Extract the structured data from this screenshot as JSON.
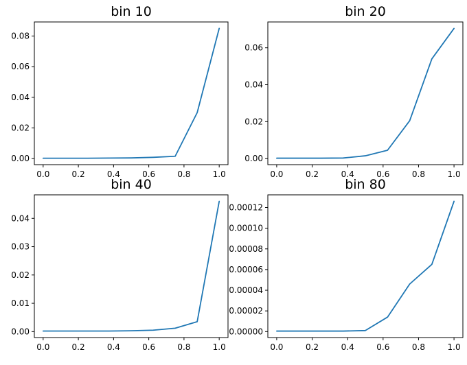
{
  "figure": {
    "background": "#ffffff",
    "line_color": "#1f77b4",
    "spine_color": "#000000",
    "text_color": "#000000"
  },
  "chart_data": [
    {
      "type": "line",
      "title": "bin 10",
      "x": [
        0,
        0.125,
        0.25,
        0.375,
        0.5,
        0.625,
        0.75,
        0.875,
        1.0
      ],
      "y": [
        0.0002,
        0.0002,
        0.0002,
        0.0003,
        0.0004,
        0.0008,
        0.0015,
        0.03,
        0.085
      ],
      "xlim": [
        -0.05,
        1.05
      ],
      "ylim": [
        -0.004,
        0.0892
      ],
      "x_ticks": {
        "values": [
          0,
          0.2,
          0.4,
          0.6,
          0.8,
          1.0
        ],
        "labels": [
          "0.0",
          "0.2",
          "0.4",
          "0.6",
          "0.8",
          "1.0"
        ]
      },
      "y_ticks": {
        "values": [
          0,
          0.02,
          0.04,
          0.06,
          0.08
        ],
        "labels": [
          "0.00",
          "0.02",
          "0.04",
          "0.06",
          "0.08"
        ]
      },
      "xlabel": "",
      "ylabel": "",
      "grid": false,
      "legend": null
    },
    {
      "type": "line",
      "title": "bin 20",
      "x": [
        0,
        0.125,
        0.25,
        0.375,
        0.5,
        0.625,
        0.75,
        0.875,
        1.0
      ],
      "y": [
        0.0002,
        0.0002,
        0.0002,
        0.0003,
        0.0015,
        0.0045,
        0.0205,
        0.054,
        0.0705
      ],
      "xlim": [
        -0.05,
        1.05
      ],
      "ylim": [
        -0.0033,
        0.074
      ],
      "x_ticks": {
        "values": [
          0,
          0.2,
          0.4,
          0.6,
          0.8,
          1.0
        ],
        "labels": [
          "0.0",
          "0.2",
          "0.4",
          "0.6",
          "0.8",
          "1.0"
        ]
      },
      "y_ticks": {
        "values": [
          0,
          0.02,
          0.04,
          0.06
        ],
        "labels": [
          "0.00",
          "0.02",
          "0.04",
          "0.06"
        ]
      },
      "xlabel": "",
      "ylabel": "",
      "grid": false,
      "legend": null
    },
    {
      "type": "line",
      "title": "bin 40",
      "x": [
        0,
        0.125,
        0.25,
        0.375,
        0.5,
        0.625,
        0.75,
        0.875,
        1.0
      ],
      "y": [
        0.0002,
        0.0002,
        0.0002,
        0.0002,
        0.0003,
        0.0005,
        0.0012,
        0.0035,
        0.046
      ],
      "xlim": [
        -0.05,
        1.05
      ],
      "ylim": [
        -0.0021,
        0.0483
      ],
      "x_ticks": {
        "values": [
          0,
          0.2,
          0.4,
          0.6,
          0.8,
          1.0
        ],
        "labels": [
          "0.0",
          "0.2",
          "0.4",
          "0.6",
          "0.8",
          "1.0"
        ]
      },
      "y_ticks": {
        "values": [
          0,
          0.01,
          0.02,
          0.03,
          0.04
        ],
        "labels": [
          "0.00",
          "0.01",
          "0.02",
          "0.03",
          "0.04"
        ]
      },
      "xlabel": "",
      "ylabel": "",
      "grid": false,
      "legend": null
    },
    {
      "type": "line",
      "title": "bin 80",
      "x": [
        0,
        0.125,
        0.25,
        0.375,
        0.5,
        0.625,
        0.75,
        0.875,
        1.0
      ],
      "y": [
        5e-07,
        5e-07,
        5e-07,
        5e-07,
        1e-06,
        1.4e-05,
        4.6e-05,
        6.5e-05,
        0.000126
      ],
      "xlim": [
        -0.05,
        1.05
      ],
      "ylim": [
        -5.775e-06,
        0.000132275
      ],
      "x_ticks": {
        "values": [
          0,
          0.2,
          0.4,
          0.6,
          0.8,
          1.0
        ],
        "labels": [
          "0.0",
          "0.2",
          "0.4",
          "0.6",
          "0.8",
          "1.0"
        ]
      },
      "y_ticks": {
        "values": [
          0,
          2e-05,
          4e-05,
          6e-05,
          8e-05,
          0.0001,
          0.00012
        ],
        "labels": [
          "0.00000",
          "0.00002",
          "0.00004",
          "0.00006",
          "0.00008",
          "0.00010",
          "0.00012"
        ]
      },
      "xlabel": "",
      "ylabel": "",
      "grid": false,
      "legend": null
    }
  ]
}
